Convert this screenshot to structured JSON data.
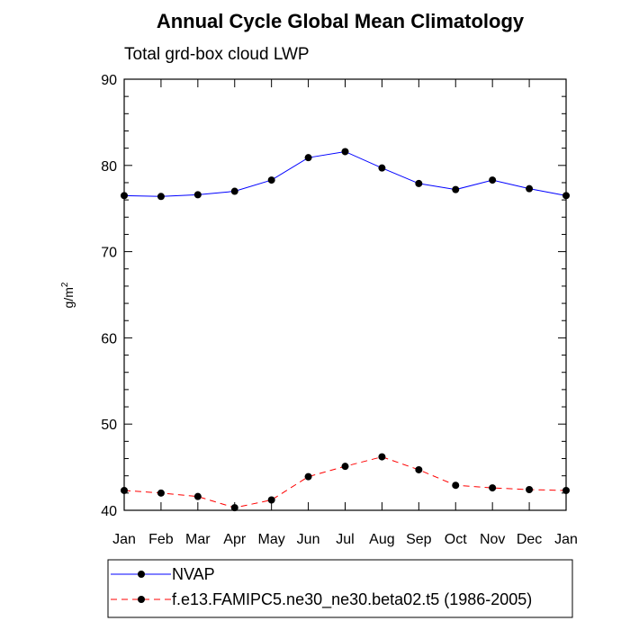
{
  "chart_data": {
    "type": "line",
    "title": "Annual Cycle Global Mean Climatology",
    "subtitle": "Total grd-box cloud LWP",
    "ylabel": "g/m",
    "ylabel_sup": "2",
    "xlabel": "",
    "ylim": [
      40,
      90
    ],
    "yticks": [
      40,
      50,
      60,
      70,
      80,
      90
    ],
    "categories": [
      "Jan",
      "Feb",
      "Mar",
      "Apr",
      "May",
      "Jun",
      "Jul",
      "Aug",
      "Sep",
      "Oct",
      "Nov",
      "Dec",
      "Jan"
    ],
    "grid": false,
    "legend_position": "bottom",
    "series": [
      {
        "name": "NVAP",
        "color": "#0000ff",
        "line_style": "solid",
        "marker": "filled-circle",
        "values": [
          76.5,
          76.4,
          76.6,
          77.0,
          78.3,
          80.9,
          81.6,
          79.7,
          77.9,
          77.2,
          78.3,
          77.3,
          76.5
        ]
      },
      {
        "name": "f.e13.FAMIPC5.ne30_ne30.beta02.t5 (1986-2005)",
        "color": "#ff0000",
        "line_style": "dashed",
        "marker": "filled-circle",
        "values": [
          42.3,
          42.0,
          41.6,
          40.3,
          41.2,
          43.9,
          45.1,
          46.2,
          44.7,
          42.9,
          42.6,
          42.4,
          42.3
        ]
      }
    ]
  }
}
